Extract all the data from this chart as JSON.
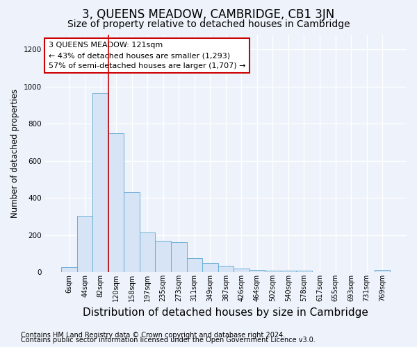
{
  "title": "3, QUEENS MEADOW, CAMBRIDGE, CB1 3JN",
  "subtitle": "Size of property relative to detached houses in Cambridge",
  "xlabel": "Distribution of detached houses by size in Cambridge",
  "ylabel": "Number of detached properties",
  "bin_labels": [
    "6sqm",
    "44sqm",
    "82sqm",
    "120sqm",
    "158sqm",
    "197sqm",
    "235sqm",
    "273sqm",
    "311sqm",
    "349sqm",
    "387sqm",
    "426sqm",
    "464sqm",
    "502sqm",
    "540sqm",
    "578sqm",
    "617sqm",
    "655sqm",
    "693sqm",
    "731sqm",
    "769sqm"
  ],
  "bar_heights": [
    25,
    305,
    965,
    750,
    430,
    212,
    168,
    160,
    75,
    50,
    32,
    20,
    10,
    8,
    8,
    8,
    0,
    0,
    0,
    0,
    10
  ],
  "bar_color": "#d6e4f5",
  "bar_edge_color": "#6baed6",
  "bar_width": 1.0,
  "vline_x_index": 3,
  "vline_color": "#cc0000",
  "annotation_title": "3 QUEENS MEADOW: 121sqm",
  "annotation_line2": "← 43% of detached houses are smaller (1,293)",
  "annotation_line3": "57% of semi-detached houses are larger (1,707) →",
  "annotation_box_edgecolor": "#cc0000",
  "ylim": [
    0,
    1280
  ],
  "yticks": [
    0,
    200,
    400,
    600,
    800,
    1000,
    1200
  ],
  "footnote1": "Contains HM Land Registry data © Crown copyright and database right 2024.",
  "footnote2": "Contains public sector information licensed under the Open Government Licence v3.0.",
  "background_color": "#eef3fb",
  "title_fontsize": 12,
  "subtitle_fontsize": 10,
  "xlabel_fontsize": 11,
  "ylabel_fontsize": 8.5,
  "tick_fontsize": 7,
  "annotation_fontsize": 8,
  "footnote_fontsize": 7
}
